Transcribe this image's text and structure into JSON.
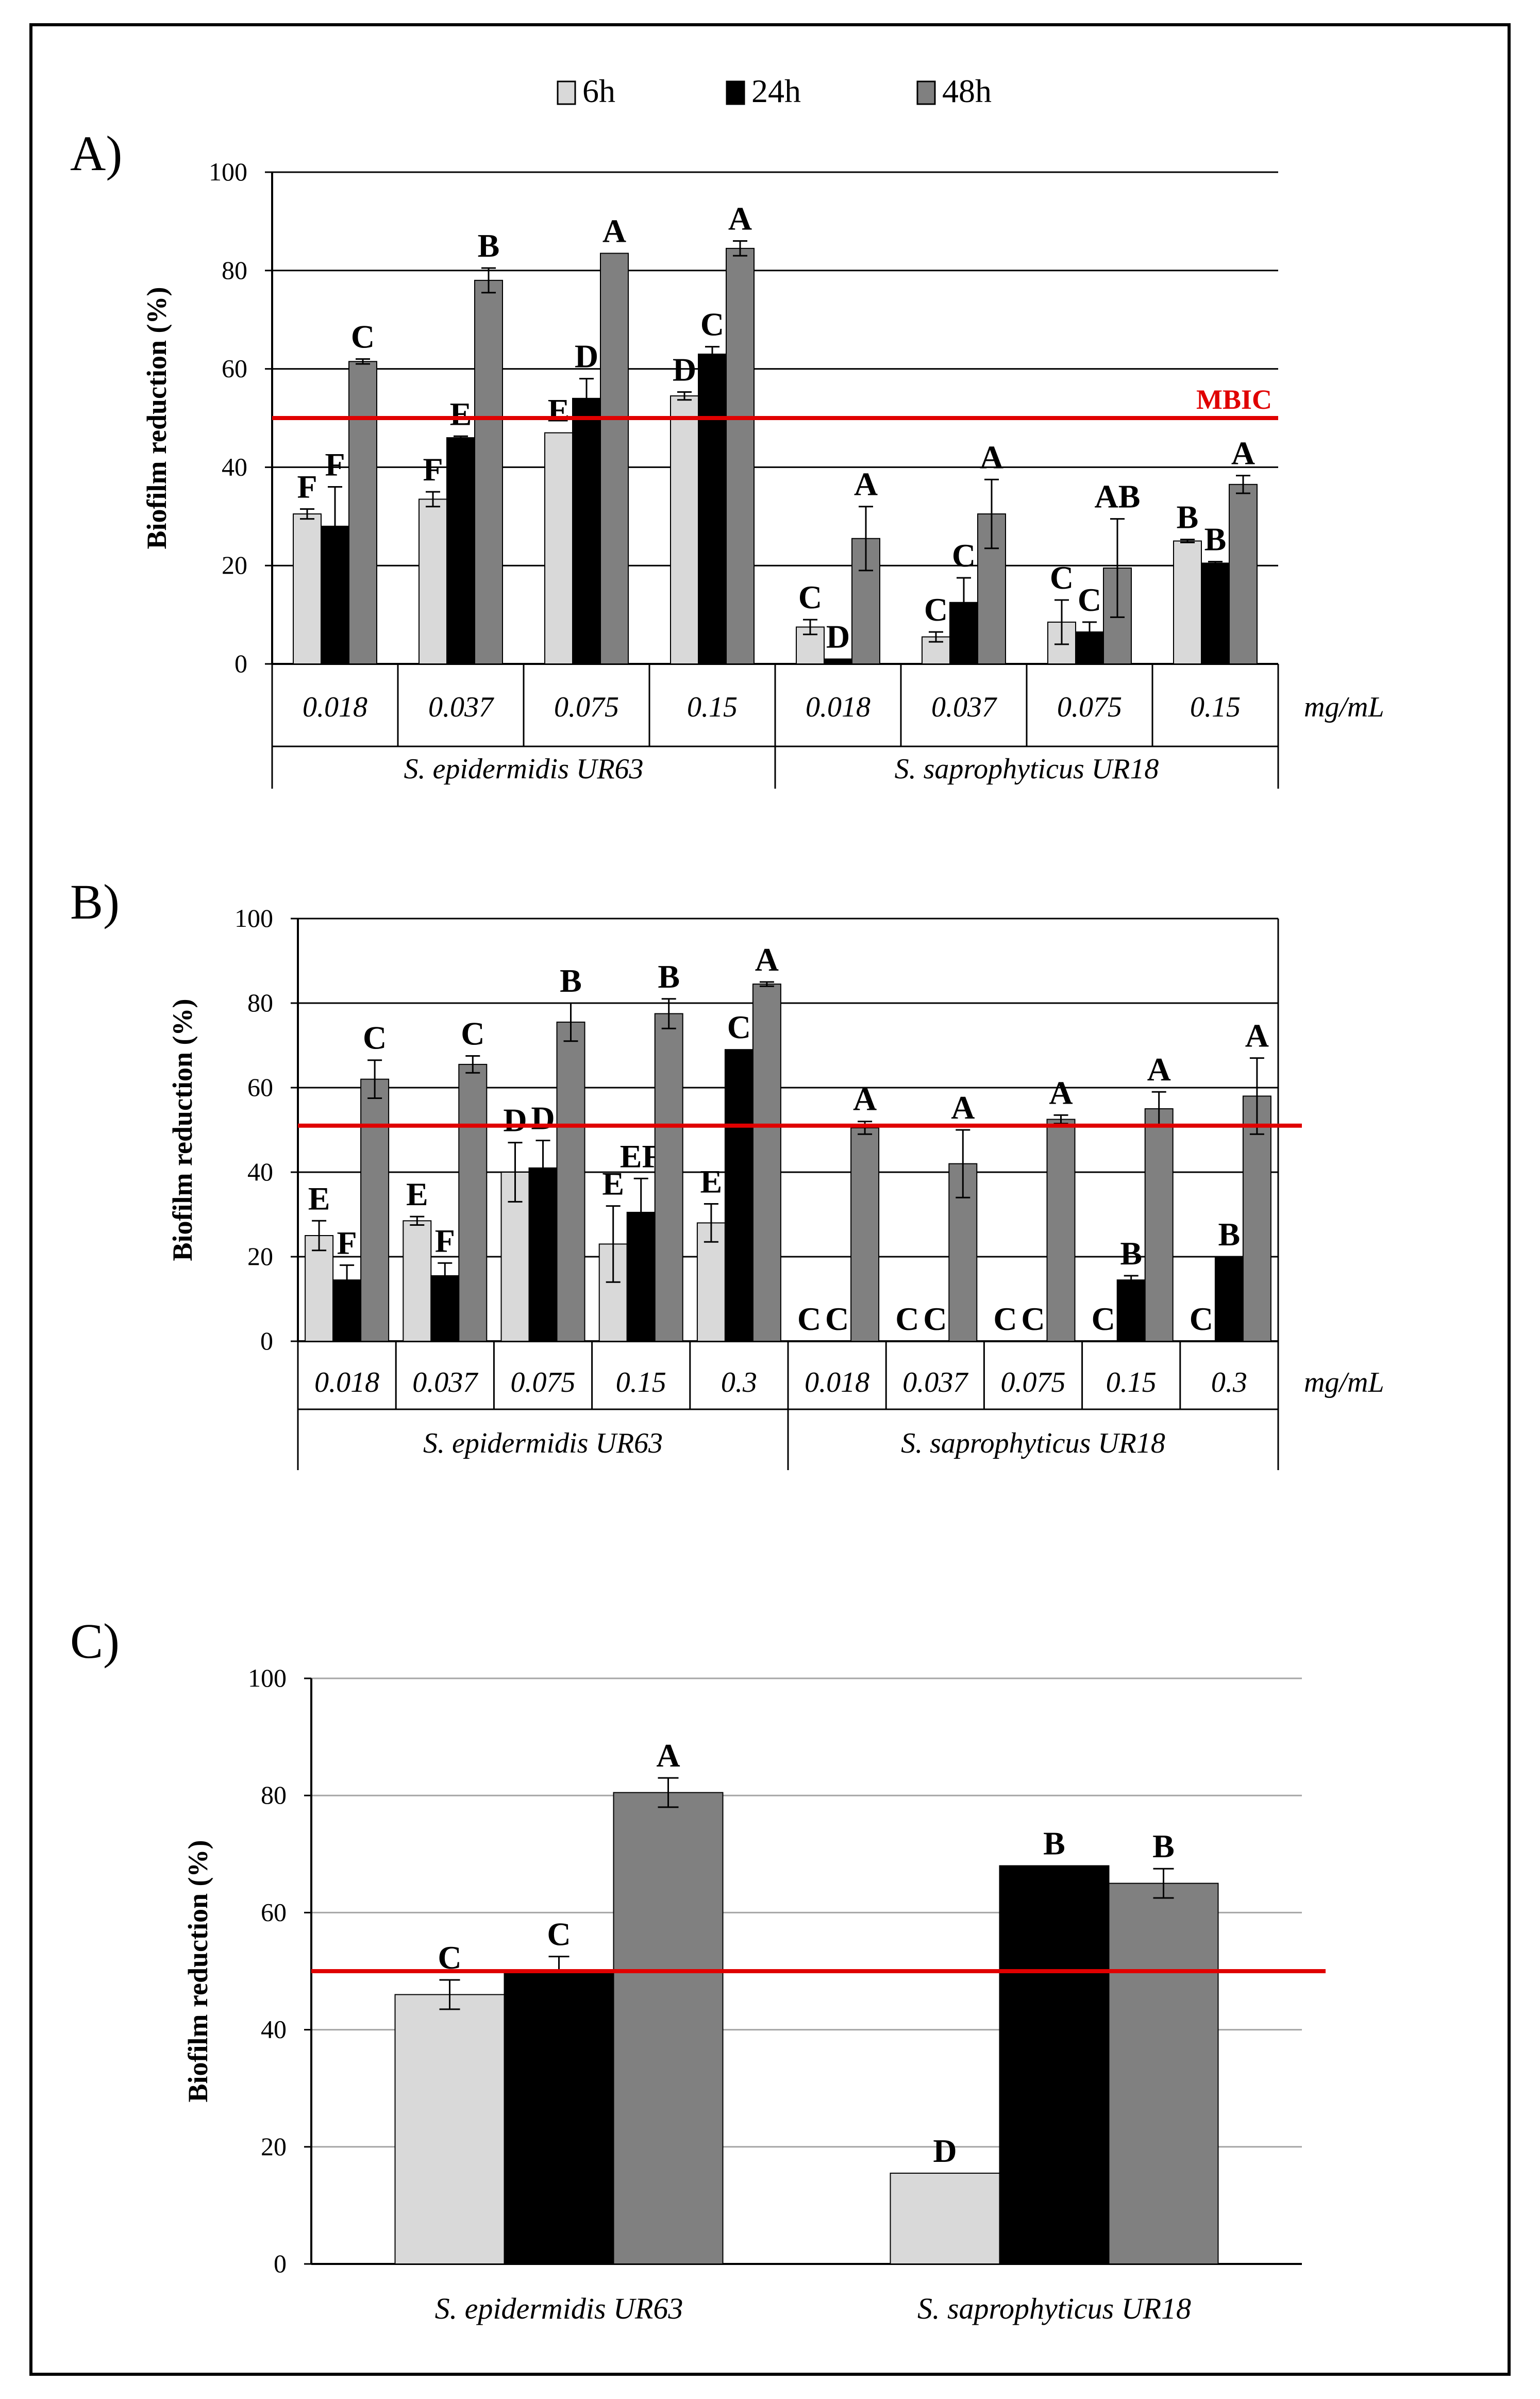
{
  "colors": {
    "s6h": "#d9d9d9",
    "s24h": "#000000",
    "s48h": "#808080",
    "threshold": "#e00000",
    "grid": "#000000",
    "text": "#000000"
  },
  "legend": [
    "6h",
    "24h",
    "48h"
  ],
  "chart_data": [
    {
      "type": "bar",
      "panel_label": "A)",
      "ylabel": "Biofilm reduction (%)",
      "ylim": [
        0,
        100
      ],
      "yticks": [
        0,
        20,
        40,
        60,
        80,
        100
      ],
      "unit_label": "mg/mL",
      "threshold": 50,
      "threshold_label": "MBIC",
      "groups": [
        {
          "name": "S. epidermidis UR63",
          "categories": [
            "0.018",
            "0.037",
            "0.075",
            "0.15"
          ]
        },
        {
          "name": "S. saprophyticus UR18",
          "categories": [
            "0.018",
            "0.037",
            "0.075",
            "0.15"
          ]
        }
      ],
      "categories": [
        "0.018",
        "0.037",
        "0.075",
        "0.15",
        "0.018",
        "0.037",
        "0.075",
        "0.15"
      ],
      "series": [
        {
          "name": "6h",
          "values": [
            30.5,
            33.5,
            47,
            54.5,
            7.5,
            5.5,
            8.5,
            25
          ],
          "errors": [
            1,
            1.5,
            0,
            0.8,
            1.5,
            1,
            4.5,
            0.3
          ],
          "letters": [
            "F",
            "F",
            "E",
            "D",
            "C",
            "C",
            "C",
            "B"
          ]
        },
        {
          "name": "24h",
          "values": [
            28,
            46,
            54,
            63,
            1,
            12.5,
            6.5,
            20.5
          ],
          "errors": [
            8,
            0.3,
            4,
            1.5,
            0,
            5,
            2,
            0.3
          ],
          "letters": [
            "F",
            "E",
            "D",
            "C",
            "D",
            "C",
            "C",
            "B"
          ]
        },
        {
          "name": "48h",
          "values": [
            61.5,
            78,
            83.5,
            84.5,
            25.5,
            30.5,
            19.5,
            36.5
          ],
          "errors": [
            0.5,
            2.5,
            0,
            1.5,
            6.5,
            7,
            10,
            1.8
          ],
          "letters": [
            "C",
            "B",
            "A",
            "A",
            "A",
            "A",
            "AB",
            "A"
          ]
        }
      ]
    },
    {
      "type": "bar",
      "panel_label": "B)",
      "ylabel": "Biofilm reduction (%)",
      "ylim": [
        0,
        100
      ],
      "yticks": [
        0,
        20,
        40,
        60,
        80,
        100
      ],
      "unit_label": "mg/mL",
      "threshold": 51,
      "groups": [
        {
          "name": "S. epidermidis UR63",
          "categories": [
            "0.018",
            "0.037",
            "0.075",
            "0.15",
            "0.3"
          ]
        },
        {
          "name": "S. saprophyticus UR18",
          "categories": [
            "0.018",
            "0.037",
            "0.075",
            "0.15",
            "0.3"
          ]
        }
      ],
      "categories": [
        "0.018",
        "0.037",
        "0.075",
        "0.15",
        "0.3",
        "0.018",
        "0.037",
        "0.075",
        "0.15",
        "0.3"
      ],
      "series": [
        {
          "name": "6h",
          "values": [
            25,
            28.5,
            40,
            23,
            28,
            0,
            0,
            0,
            0,
            0
          ],
          "errors": [
            3.5,
            1,
            7,
            9,
            4.5,
            0,
            0,
            0,
            0,
            0
          ],
          "letters": [
            "E",
            "E",
            "D",
            "E",
            "E",
            "C",
            "C",
            "C",
            "C",
            "C"
          ]
        },
        {
          "name": "24h",
          "values": [
            14.5,
            15.5,
            41,
            30.5,
            69,
            0,
            0,
            0,
            14.5,
            20
          ],
          "errors": [
            3.5,
            3,
            6.5,
            8,
            0,
            0,
            0,
            0,
            1,
            0
          ],
          "letters": [
            "F",
            "F",
            "D",
            "EF",
            "C",
            "C",
            "C",
            "C",
            "B",
            "B"
          ]
        },
        {
          "name": "48h",
          "values": [
            62,
            65.5,
            75.5,
            77.5,
            84.5,
            50.5,
            42,
            52.5,
            55,
            58
          ],
          "errors": [
            4.5,
            2,
            4.5,
            3.5,
            0.5,
            1.5,
            8,
            1,
            4,
            9
          ],
          "letters": [
            "C",
            "C",
            "B",
            "B",
            "A",
            "A",
            "A",
            "A",
            "A",
            "A"
          ]
        }
      ]
    },
    {
      "type": "bar",
      "panel_label": "C)",
      "ylabel": "Biofilm reduction (%)",
      "ylim": [
        0,
        100
      ],
      "yticks": [
        0,
        20,
        40,
        60,
        80,
        100
      ],
      "threshold": 50,
      "categories": [
        "S. epidermidis UR63",
        "S. saprophyticus UR18"
      ],
      "series": [
        {
          "name": "6h",
          "values": [
            46,
            15.5
          ],
          "errors": [
            2.5,
            0
          ],
          "letters": [
            "C",
            "D"
          ]
        },
        {
          "name": "24h",
          "values": [
            50,
            68
          ],
          "errors": [
            2.5,
            0
          ],
          "letters": [
            "C",
            "B"
          ]
        },
        {
          "name": "48h",
          "values": [
            80.5,
            65
          ],
          "errors": [
            2.5,
            2.5
          ],
          "letters": [
            "A",
            "B"
          ]
        }
      ]
    }
  ]
}
